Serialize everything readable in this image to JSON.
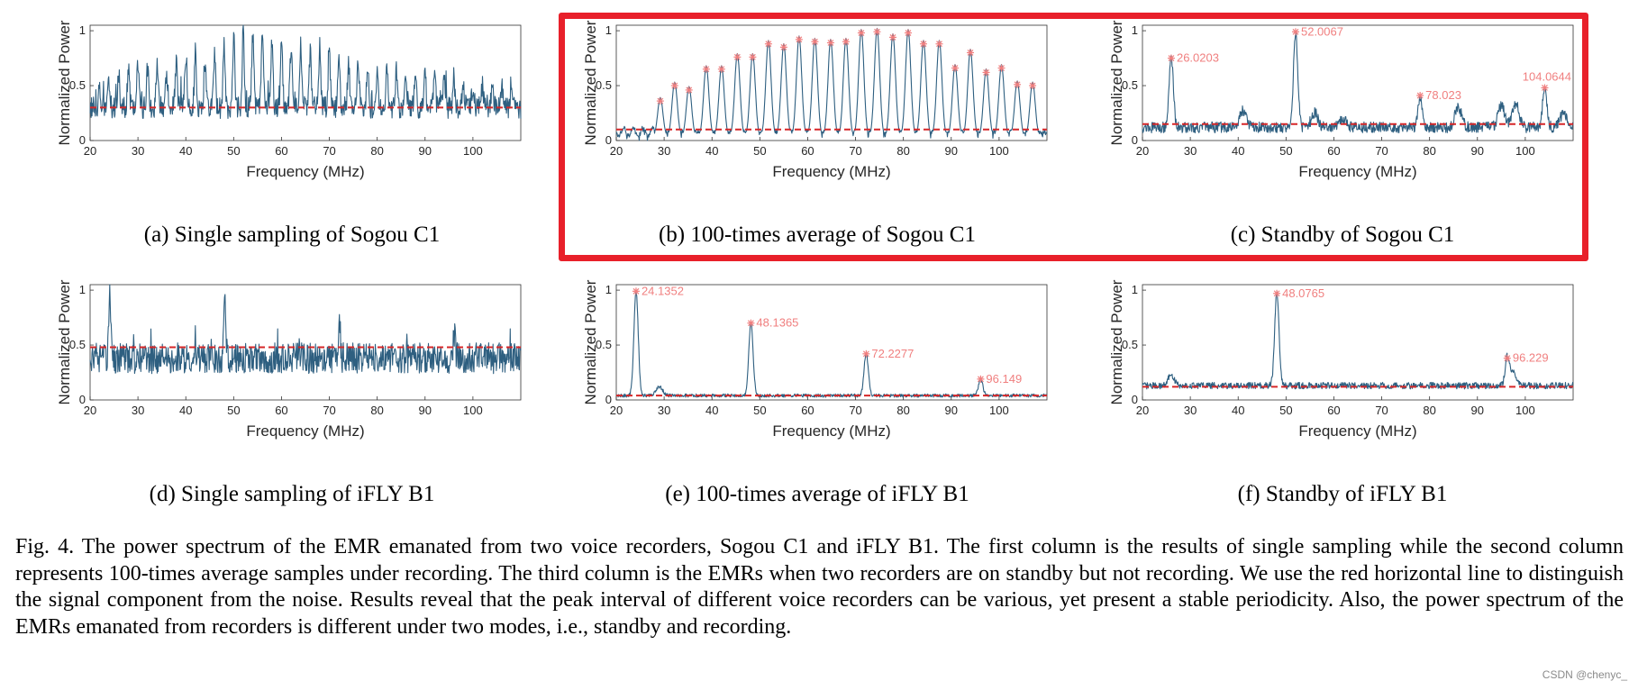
{
  "figure": {
    "subcaptions": [
      "(a) Single sampling of Sogou C1",
      "(b) 100-times average of Sogou C1",
      "(c) Standby of Sogou C1",
      "(d) Single sampling of iFLY B1",
      "(e) 100-times average of iFLY B1",
      "(f) Standby of iFLY B1"
    ],
    "caption": "Fig. 4.  The power spectrum of the EMR emanated from two voice recorders, Sogou C1 and iFLY B1. The first column is the results of single sampling while the second column represents 100-times average samples under recording. The third column is the EMRs when two recorders are on standby but not recording. We use the red horizontal line to distinguish the signal component from the noise. Results reveal that the peak interval of different voice recorders can be various, yet present a stable periodicity. Also, the power spectrum of the EMRs emanated from recorders is different under two modes, i.e., standby and recording.",
    "watermark": "CSDN @chenyc_",
    "highlight_color": "#e8202a",
    "line_color": "#2e5f80",
    "threshold_color": "#d62728",
    "peak_color": "#f07f7f"
  },
  "chart_data": [
    {
      "id": "a",
      "type": "line",
      "style": "noise",
      "xlabel": "Frequency (MHz)",
      "ylabel": "Normalized Power",
      "xlim": [
        20,
        110
      ],
      "ylim": [
        0,
        1.05
      ],
      "xticks": [
        20,
        30,
        40,
        50,
        60,
        70,
        80,
        90,
        100
      ],
      "yticks": [
        0,
        0.5,
        1
      ],
      "ytick_labels": [
        "0",
        "0.5",
        "1"
      ],
      "threshold": 0.3,
      "base": 0.3,
      "noise": 0.1,
      "spikes": {
        "start": 22.0,
        "step": 2.0,
        "end": 109,
        "heights": [
          0.5,
          0.55,
          0.6,
          0.65,
          0.7,
          0.68,
          0.72,
          0.6,
          0.7,
          0.75,
          0.8,
          0.72,
          0.78,
          0.85,
          0.95,
          1.0,
          0.95,
          0.98,
          0.9,
          0.88,
          0.85,
          0.9,
          0.8,
          0.85,
          0.78,
          0.75,
          0.7,
          0.72,
          0.7,
          0.65,
          0.68,
          0.62,
          0.6,
          0.58,
          0.6,
          0.55,
          0.55,
          0.5,
          0.5,
          0.5,
          0.5,
          0.5,
          0.5,
          0.5
        ]
      },
      "peaks": [],
      "peak_labels": []
    },
    {
      "id": "b",
      "type": "line",
      "style": "comb",
      "xlabel": "Frequency (MHz)",
      "ylabel": "Normalized Power",
      "xlim": [
        20,
        110
      ],
      "ylim": [
        0,
        1.05
      ],
      "xticks": [
        20,
        30,
        40,
        50,
        60,
        70,
        80,
        90,
        100
      ],
      "yticks": [
        0,
        0.5,
        1
      ],
      "ytick_labels": [
        "0",
        "0.5",
        "1"
      ],
      "threshold": 0.1,
      "base": 0.08,
      "noise": 0.02,
      "peaks": [
        {
          "x": 29.2,
          "y": 0.36
        },
        {
          "x": 32.2,
          "y": 0.5
        },
        {
          "x": 35.2,
          "y": 0.46
        },
        {
          "x": 38.8,
          "y": 0.65
        },
        {
          "x": 42.0,
          "y": 0.65
        },
        {
          "x": 45.3,
          "y": 0.76
        },
        {
          "x": 48.5,
          "y": 0.76
        },
        {
          "x": 51.8,
          "y": 0.88
        },
        {
          "x": 55.0,
          "y": 0.85
        },
        {
          "x": 58.2,
          "y": 0.92
        },
        {
          "x": 61.5,
          "y": 0.9
        },
        {
          "x": 64.8,
          "y": 0.89
        },
        {
          "x": 68.0,
          "y": 0.9
        },
        {
          "x": 71.2,
          "y": 0.98
        },
        {
          "x": 74.5,
          "y": 0.99
        },
        {
          "x": 77.8,
          "y": 0.94
        },
        {
          "x": 81.0,
          "y": 0.98
        },
        {
          "x": 84.2,
          "y": 0.88
        },
        {
          "x": 87.5,
          "y": 0.88
        },
        {
          "x": 90.8,
          "y": 0.66
        },
        {
          "x": 94.0,
          "y": 0.8
        },
        {
          "x": 97.3,
          "y": 0.62
        },
        {
          "x": 100.5,
          "y": 0.66
        },
        {
          "x": 103.8,
          "y": 0.51
        },
        {
          "x": 107.0,
          "y": 0.5
        }
      ],
      "peak_labels": []
    },
    {
      "id": "c",
      "type": "line",
      "style": "sparse",
      "xlabel": "Frequency (MHz)",
      "ylabel": "Normalized Power",
      "xlim": [
        20,
        110
      ],
      "ylim": [
        0,
        1.05
      ],
      "xticks": [
        20,
        30,
        40,
        50,
        60,
        70,
        80,
        90,
        100
      ],
      "yticks": [
        0,
        0.5,
        1
      ],
      "ytick_labels": [
        "0",
        "0.5",
        "1"
      ],
      "threshold": 0.15,
      "base": 0.12,
      "noise": 0.05,
      "bumps": [
        {
          "x": 41,
          "h": 0.28
        },
        {
          "x": 56,
          "h": 0.25
        },
        {
          "x": 62,
          "h": 0.2
        },
        {
          "x": 86,
          "h": 0.3
        },
        {
          "x": 95,
          "h": 0.32
        },
        {
          "x": 98,
          "h": 0.34
        },
        {
          "x": 108,
          "h": 0.25
        }
      ],
      "peaks": [
        {
          "x": 26.0203,
          "y": 0.75
        },
        {
          "x": 52.0067,
          "y": 0.99
        },
        {
          "x": 78.023,
          "y": 0.41
        },
        {
          "x": 104.0644,
          "y": 0.48
        }
      ],
      "peak_labels": [
        "26.0203",
        "52.0067",
        "78.023",
        "104.0644"
      ]
    },
    {
      "id": "d",
      "type": "line",
      "style": "noise",
      "xlabel": "Frequency (MHz)",
      "ylabel": "Normalized Power",
      "xlim": [
        20,
        110
      ],
      "ylim": [
        0,
        1.05
      ],
      "xticks": [
        20,
        30,
        40,
        50,
        60,
        70,
        80,
        90,
        100
      ],
      "yticks": [
        0,
        0.5,
        1
      ],
      "ytick_labels": [
        "0",
        "0.5",
        "1"
      ],
      "threshold": 0.48,
      "base": 0.38,
      "noise": 0.14,
      "spikes": {
        "start": 24.1,
        "step": 24.0,
        "end": 100,
        "heights": [
          1.0,
          0.9,
          0.7,
          0.6
        ]
      },
      "peaks": [],
      "peak_labels": []
    },
    {
      "id": "e",
      "type": "line",
      "style": "sparse",
      "xlabel": "Frequency (MHz)",
      "ylabel": "Normalized Power",
      "xlim": [
        20,
        110
      ],
      "ylim": [
        0,
        1.05
      ],
      "xticks": [
        20,
        30,
        40,
        50,
        60,
        70,
        80,
        90,
        100
      ],
      "yticks": [
        0,
        0.5,
        1
      ],
      "ytick_labels": [
        "0",
        "0.5",
        "1"
      ],
      "threshold": 0.04,
      "base": 0.04,
      "noise": 0.015,
      "bumps": [
        {
          "x": 29,
          "h": 0.12
        }
      ],
      "peaks": [
        {
          "x": 24.1352,
          "y": 0.99
        },
        {
          "x": 48.1365,
          "y": 0.7
        },
        {
          "x": 72.2277,
          "y": 0.42
        },
        {
          "x": 96.149,
          "y": 0.19
        }
      ],
      "peak_labels": [
        "24.1352",
        "48.1365",
        "72.2277",
        "96.149"
      ]
    },
    {
      "id": "f",
      "type": "line",
      "style": "sparse",
      "xlabel": "Frequency (MHz)",
      "ylabel": "Normalized Power",
      "xlim": [
        20,
        110
      ],
      "ylim": [
        0,
        1.05
      ],
      "xticks": [
        20,
        30,
        40,
        50,
        60,
        70,
        80,
        90,
        100
      ],
      "yticks": [
        0,
        0.5,
        1
      ],
      "ytick_labels": [
        "0",
        "0.5",
        "1"
      ],
      "threshold": 0.12,
      "base": 0.13,
      "noise": 0.03,
      "bumps": [
        {
          "x": 26,
          "h": 0.22
        },
        {
          "x": 97.5,
          "h": 0.25
        }
      ],
      "peaks": [
        {
          "x": 48.0765,
          "y": 0.97
        },
        {
          "x": 96.229,
          "y": 0.38
        }
      ],
      "peak_labels": [
        "48.0765",
        "96.229"
      ]
    }
  ]
}
